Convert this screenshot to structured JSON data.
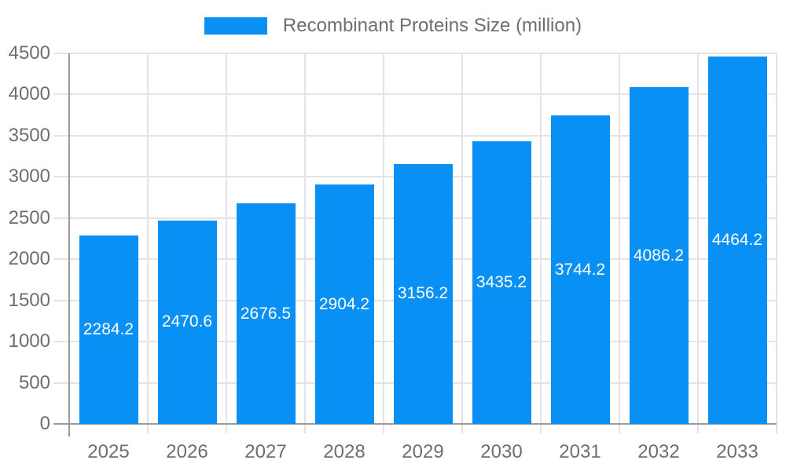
{
  "legend": {
    "label": "Recombinant Proteins Size (million)"
  },
  "chart_data": {
    "type": "bar",
    "title": "Recombinant Proteins Size (million)",
    "categories": [
      "2025",
      "2026",
      "2027",
      "2028",
      "2029",
      "2030",
      "2031",
      "2032",
      "2033"
    ],
    "series": [
      {
        "name": "Recombinant Proteins Size (million)",
        "values": [
          2284.2,
          2470.6,
          2676.5,
          2904.2,
          3156.2,
          3435.2,
          3744.2,
          4086.2,
          4464.2
        ]
      }
    ],
    "data_labels": [
      2284.2,
      2470.6,
      2676.5,
      2904.2,
      3156.2,
      3435.2,
      3744.2,
      4086.2,
      4464.2
    ],
    "xlabel": "",
    "ylabel": "",
    "ylim": [
      0,
      4500
    ],
    "ytick_step": 500,
    "yticks": [
      0,
      500,
      1000,
      1500,
      2000,
      2500,
      3000,
      3500,
      4000,
      4500
    ],
    "grid": true,
    "legend_position": "top-center",
    "data_label_position": "inside-center",
    "colors": {
      "bar": "#0890f5",
      "axis_line": "#9a9a9a",
      "grid_line": "#e3e3e3",
      "axis_text": "#6e6e6e",
      "data_label_text": "#ffffff",
      "background": "#ffffff"
    }
  }
}
